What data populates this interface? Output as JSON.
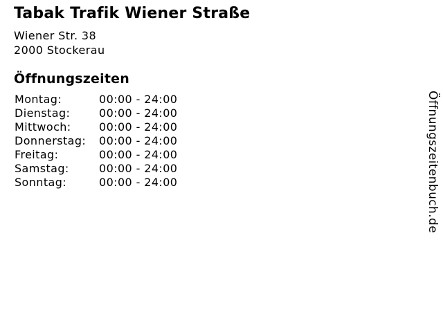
{
  "business": {
    "name": "Tabak Trafik Wiener Straße",
    "street": "Wiener Str. 38",
    "city": "2000 Stockerau"
  },
  "hours": {
    "heading": "Öffnungszeiten",
    "days": [
      {
        "label": "Montag:",
        "time": "00:00 - 24:00"
      },
      {
        "label": "Dienstag:",
        "time": "00:00 - 24:00"
      },
      {
        "label": "Mittwoch:",
        "time": "00:00 - 24:00"
      },
      {
        "label": "Donnerstag:",
        "time": "00:00 - 24:00"
      },
      {
        "label": "Freitag:",
        "time": "00:00 - 24:00"
      },
      {
        "label": "Samstag:",
        "time": "00:00 - 24:00"
      },
      {
        "label": "Sonntag:",
        "time": "00:00 - 24:00"
      }
    ]
  },
  "watermark": {
    "text": "Öffnungszeitenbuch.de"
  },
  "colors": {
    "text": "#000000",
    "background": "#ffffff"
  }
}
